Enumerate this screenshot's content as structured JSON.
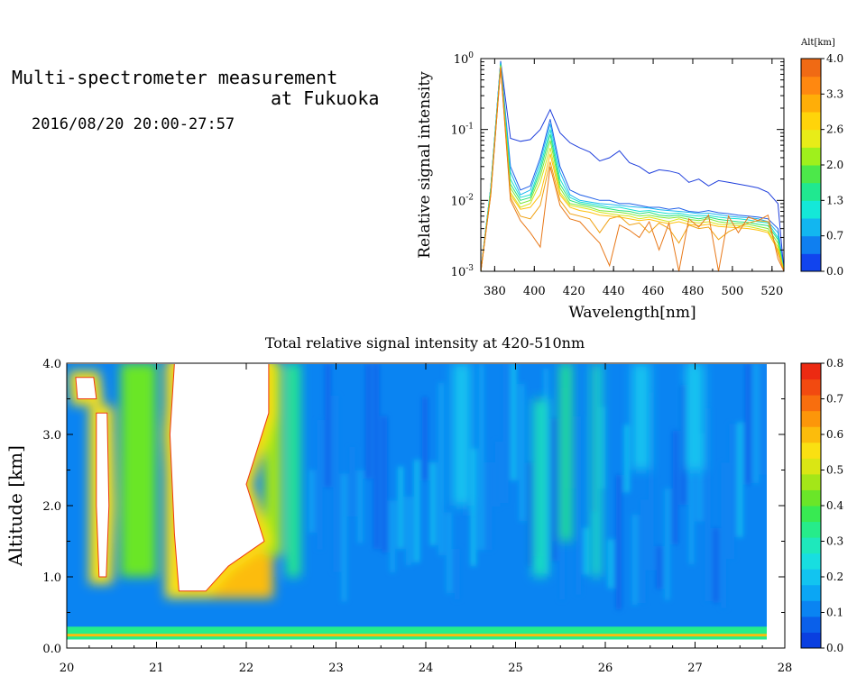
{
  "header": {
    "title_line1": "Multi-spectrometer measurement",
    "title_line2": "at Fukuoka",
    "datetime": "2016/08/20 20:00-27:57"
  },
  "chart_data": [
    {
      "type": "line",
      "xlabel": "Wavelength[nm]",
      "ylabel": "Relative signal intensity",
      "xlim": [
        373,
        526
      ],
      "ylim": [
        0.001,
        1
      ],
      "y_scale": "log",
      "x_ticks": [
        "380",
        "400",
        "420",
        "440",
        "460",
        "480",
        "500",
        "520"
      ],
      "y_ticks": [
        {
          "base": "10",
          "exp": "-3"
        },
        {
          "base": "10",
          "exp": "-2"
        },
        {
          "base": "10",
          "exp": "-1"
        },
        {
          "base": "10",
          "exp": "0"
        }
      ],
      "colorbar": {
        "label": "Alt[km]",
        "ticks": [
          "0.0",
          "0.7",
          "1.3",
          "2.0",
          "2.6",
          "3.3",
          "4.0"
        ],
        "colors": [
          "#1144ee",
          "#0f7ff0",
          "#12b6f0",
          "#14e8d8",
          "#20e890",
          "#4ce84a",
          "#9ff01c",
          "#e8ec18",
          "#ffd40a",
          "#ffae08",
          "#ff8810",
          "#f06a14"
        ]
      },
      "x": [
        373,
        378,
        383,
        388,
        393,
        398,
        403,
        408,
        413,
        418,
        423,
        428,
        433,
        438,
        443,
        448,
        453,
        458,
        463,
        468,
        473,
        478,
        483,
        488,
        493,
        498,
        503,
        508,
        513,
        518,
        523,
        526
      ],
      "series": [
        {
          "color": "#1f3fdc",
          "values": [
            0.001,
            0.015,
            0.92,
            0.075,
            0.068,
            0.072,
            0.1,
            0.19,
            0.09,
            0.065,
            0.055,
            0.048,
            0.036,
            0.04,
            0.05,
            0.034,
            0.03,
            0.024,
            0.027,
            0.026,
            0.024,
            0.018,
            0.02,
            0.016,
            0.019,
            0.018,
            0.017,
            0.016,
            0.015,
            0.013,
            0.009,
            0.001
          ]
        },
        {
          "color": "#2060e8",
          "values": [
            0.001,
            0.015,
            0.9,
            0.03,
            0.014,
            0.016,
            0.04,
            0.14,
            0.03,
            0.014,
            0.012,
            0.011,
            0.01,
            0.01,
            0.009,
            0.009,
            0.0085,
            0.008,
            0.008,
            0.0075,
            0.0078,
            0.007,
            0.0068,
            0.0072,
            0.0067,
            0.0065,
            0.0062,
            0.006,
            0.0058,
            0.0055,
            0.004,
            0.001
          ]
        },
        {
          "color": "#1ab8f0",
          "values": [
            0.001,
            0.015,
            0.88,
            0.025,
            0.012,
            0.014,
            0.035,
            0.12,
            0.025,
            0.012,
            0.01,
            0.0095,
            0.009,
            0.0088,
            0.0085,
            0.0082,
            0.008,
            0.0078,
            0.0074,
            0.0072,
            0.007,
            0.0068,
            0.0065,
            0.0066,
            0.0063,
            0.006,
            0.0058,
            0.0057,
            0.0055,
            0.005,
            0.0035,
            0.001
          ]
        },
        {
          "color": "#16e0d0",
          "values": [
            0.001,
            0.015,
            0.85,
            0.02,
            0.011,
            0.012,
            0.03,
            0.1,
            0.02,
            0.011,
            0.0095,
            0.009,
            0.0085,
            0.008,
            0.008,
            0.0075,
            0.007,
            0.0072,
            0.0068,
            0.0065,
            0.0066,
            0.0062,
            0.006,
            0.0061,
            0.0058,
            0.0056,
            0.0055,
            0.0053,
            0.005,
            0.0048,
            0.003,
            0.001
          ]
        },
        {
          "color": "#28e27a",
          "values": [
            0.001,
            0.014,
            0.82,
            0.017,
            0.01,
            0.011,
            0.026,
            0.085,
            0.017,
            0.01,
            0.009,
            0.0085,
            0.008,
            0.0076,
            0.0072,
            0.007,
            0.0065,
            0.0068,
            0.0062,
            0.006,
            0.0062,
            0.0058,
            0.0055,
            0.0058,
            0.0054,
            0.0052,
            0.005,
            0.0049,
            0.0046,
            0.0044,
            0.0028,
            0.001
          ]
        },
        {
          "color": "#7ee83a",
          "values": [
            0.001,
            0.013,
            0.8,
            0.015,
            0.009,
            0.01,
            0.022,
            0.07,
            0.015,
            0.009,
            0.0085,
            0.008,
            0.0072,
            0.007,
            0.0068,
            0.0065,
            0.006,
            0.0062,
            0.0058,
            0.0056,
            0.0058,
            0.0054,
            0.0052,
            0.0055,
            0.005,
            0.0048,
            0.0047,
            0.0046,
            0.0043,
            0.004,
            0.0025,
            0.001
          ]
        },
        {
          "color": "#d8e418",
          "values": [
            0.001,
            0.013,
            0.78,
            0.013,
            0.008,
            0.009,
            0.018,
            0.055,
            0.013,
            0.0085,
            0.008,
            0.0075,
            0.0068,
            0.0065,
            0.0062,
            0.006,
            0.0055,
            0.0058,
            0.0054,
            0.005,
            0.0055,
            0.005,
            0.0048,
            0.005,
            0.0046,
            0.0045,
            0.0044,
            0.0043,
            0.004,
            0.0037,
            0.0022,
            0.001
          ]
        },
        {
          "color": "#ffc00c",
          "values": [
            0.001,
            0.012,
            0.76,
            0.012,
            0.0075,
            0.008,
            0.012,
            0.045,
            0.012,
            0.008,
            0.0072,
            0.0068,
            0.0062,
            0.006,
            0.0058,
            0.0055,
            0.0052,
            0.0054,
            0.005,
            0.0047,
            0.005,
            0.0046,
            0.0044,
            0.0046,
            0.0043,
            0.0042,
            0.0041,
            0.004,
            0.0038,
            0.0035,
            0.002,
            0.001
          ]
        },
        {
          "color": "#f0a010",
          "values": [
            0.001,
            0.012,
            0.75,
            0.011,
            0.006,
            0.0055,
            0.0085,
            0.035,
            0.01,
            0.0065,
            0.006,
            0.0055,
            0.0035,
            0.0055,
            0.006,
            0.0045,
            0.0048,
            0.0035,
            0.0048,
            0.004,
            0.0025,
            0.0045,
            0.004,
            0.0042,
            0.0028,
            0.0036,
            0.0042,
            0.0048,
            0.0052,
            0.005,
            0.0018,
            0.001
          ]
        },
        {
          "color": "#e87818",
          "values": [
            0.001,
            0.012,
            0.74,
            0.01,
            0.0052,
            0.0035,
            0.0022,
            0.03,
            0.0085,
            0.0055,
            0.005,
            0.0035,
            0.0025,
            0.0012,
            0.0045,
            0.0038,
            0.003,
            0.005,
            0.002,
            0.0048,
            0.001,
            0.0055,
            0.0042,
            0.0062,
            0.001,
            0.006,
            0.0035,
            0.0058,
            0.0052,
            0.0062,
            0.0015,
            0.001
          ]
        }
      ]
    },
    {
      "type": "heatmap",
      "title": "Total relative signal intensity at 420-510nm",
      "ylabel": "Altitude [km]",
      "xlim": [
        20,
        28
      ],
      "ylim": [
        0,
        4
      ],
      "x_ticks": [
        "20",
        "21",
        "22",
        "23",
        "24",
        "25",
        "26",
        "27",
        "28"
      ],
      "y_ticks": [
        "0.0",
        "1.0",
        "2.0",
        "3.0",
        "4.0"
      ],
      "colorbar": {
        "ticks": [
          "0.0",
          "0.1",
          "0.2",
          "0.3",
          "0.4",
          "0.5",
          "0.6",
          "0.7",
          "0.8"
        ],
        "range": [
          0,
          0.8
        ],
        "colors": [
          "#0a3fe0",
          "#0a60ea",
          "#0a84f2",
          "#0ba6f4",
          "#12c4f0",
          "#18dee0",
          "#1ee8bc",
          "#26ec8a",
          "#38ea52",
          "#6ae628",
          "#a4e618",
          "#dae614",
          "#fae012",
          "#fcbc0c",
          "#fc960a",
          "#f86e0e",
          "#f24a10",
          "#ec2a12"
        ]
      },
      "background_level": 0.12,
      "low_band": {
        "y": [
          0.12,
          0.3
        ],
        "value": 0.32
      },
      "saturated_regions": [
        {
          "name": "plume-main",
          "value": 0.95,
          "top": 4.0,
          "points": [
            [
              21.2,
              4.0
            ],
            [
              22.25,
              4.0
            ],
            [
              22.25,
              3.3
            ],
            [
              22.0,
              2.3
            ],
            [
              22.2,
              1.5
            ],
            [
              21.8,
              1.15
            ],
            [
              21.55,
              0.8
            ],
            [
              21.25,
              0.8
            ],
            [
              21.2,
              1.6
            ],
            [
              21.15,
              3.0
            ]
          ]
        },
        {
          "name": "plume-left",
          "value": 0.9,
          "points": [
            [
              20.33,
              3.3
            ],
            [
              20.45,
              3.3
            ],
            [
              20.47,
              2.0
            ],
            [
              20.44,
              1.0
            ],
            [
              20.36,
              1.0
            ],
            [
              20.33,
              2.0
            ]
          ]
        },
        {
          "name": "plume-top-left",
          "value": 0.9,
          "points": [
            [
              20.1,
              3.8
            ],
            [
              20.3,
              3.8
            ],
            [
              20.33,
              3.5
            ],
            [
              20.12,
              3.5
            ]
          ]
        }
      ],
      "enhanced_regions": [
        {
          "x": [
            20.25,
            20.5
          ],
          "y": [
            0.9,
            3.4
          ],
          "value": 0.55
        },
        {
          "x": [
            20.6,
            21.0
          ],
          "y": [
            1.0,
            4.0
          ],
          "value": 0.4
        },
        {
          "x": [
            21.1,
            21.3
          ],
          "y": [
            0.7,
            4.0
          ],
          "value": 0.55
        },
        {
          "x": [
            21.3,
            22.3
          ],
          "y": [
            0.7,
            1.4
          ],
          "value": 0.6
        },
        {
          "x": [
            22.2,
            22.4
          ],
          "y": [
            1.3,
            4.0
          ],
          "value": 0.45
        },
        {
          "x": [
            22.45,
            22.6
          ],
          "y": [
            1.0,
            4.0
          ],
          "value": 0.35
        },
        {
          "x": [
            25.2,
            25.35
          ],
          "y": [
            1.0,
            3.5
          ],
          "value": 0.28
        },
        {
          "x": [
            25.5,
            25.62
          ],
          "y": [
            1.5,
            4.0
          ],
          "value": 0.35
        },
        {
          "x": [
            25.85,
            25.95
          ],
          "y": [
            1.0,
            4.0
          ],
          "value": 0.3
        },
        {
          "x": [
            24.3,
            24.5
          ],
          "y": [
            2.0,
            4.0
          ],
          "value": 0.22
        },
        {
          "x": [
            26.3,
            26.5
          ],
          "y": [
            2.5,
            4.0
          ],
          "value": 0.22
        },
        {
          "x": [
            26.9,
            27.1
          ],
          "y": [
            2.5,
            4.0
          ],
          "value": 0.2
        }
      ]
    }
  ]
}
